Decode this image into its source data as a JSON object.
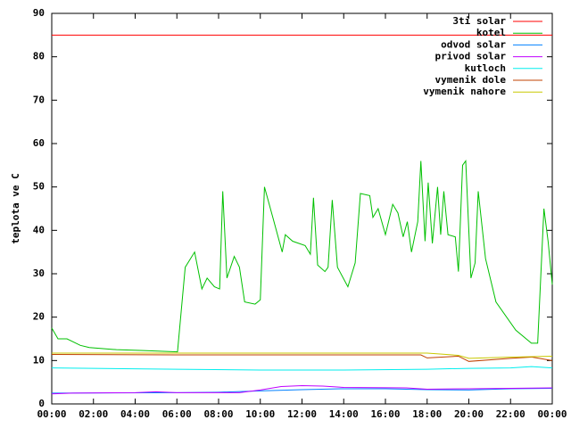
{
  "chart_data": {
    "type": "line",
    "y_label": "teplota ve C",
    "xlim": [
      0,
      24
    ],
    "xticks": [
      {
        "value": 0,
        "label": "00:00"
      },
      {
        "value": 2,
        "label": "02:00"
      },
      {
        "value": 4,
        "label": "04:00"
      },
      {
        "value": 6,
        "label": "06:00"
      },
      {
        "value": 8,
        "label": "08:00"
      },
      {
        "value": 10,
        "label": "10:00"
      },
      {
        "value": 12,
        "label": "12:00"
      },
      {
        "value": 14,
        "label": "14:00"
      },
      {
        "value": 16,
        "label": "16:00"
      },
      {
        "value": 18,
        "label": "18:00"
      },
      {
        "value": 20,
        "label": "20:00"
      },
      {
        "value": 22,
        "label": "22:00"
      },
      {
        "value": 24,
        "label": "00:00"
      }
    ],
    "ylim": [
      0,
      90
    ],
    "yticks": [
      0,
      10,
      20,
      30,
      40,
      50,
      60,
      70,
      80,
      90
    ],
    "legend": "top-right",
    "series": [
      {
        "name": "3ti solar",
        "color": "#ff0000",
        "x": [
          0,
          24
        ],
        "values": [
          85,
          85
        ]
      },
      {
        "name": "kotel",
        "color": "#00c000",
        "x": [
          0,
          0.3,
          0.73,
          1.37,
          1.8,
          3.1,
          4.4,
          6.03,
          6.4,
          6.85,
          7.2,
          7.45,
          7.8,
          8.05,
          8.2,
          8.4,
          8.75,
          9.0,
          9.25,
          9.75,
          10.0,
          10.2,
          10.6,
          11.05,
          11.2,
          11.55,
          12.15,
          12.4,
          12.55,
          12.75,
          13.1,
          13.25,
          13.45,
          13.7,
          14.2,
          14.55,
          14.8,
          15.25,
          15.4,
          15.65,
          16.0,
          16.35,
          16.6,
          16.85,
          17.05,
          17.25,
          17.55,
          17.7,
          17.9,
          18.05,
          18.25,
          18.5,
          18.65,
          18.8,
          19.0,
          19.35,
          19.5,
          19.7,
          19.85,
          20.1,
          20.3,
          20.45,
          20.8,
          21.3,
          22.25,
          23.0,
          23.3,
          23.6,
          23.8,
          24.0
        ],
        "values": [
          17.5,
          15,
          15,
          13.5,
          13,
          12.5,
          12.3,
          12,
          31.5,
          35,
          26.5,
          29,
          27,
          26.5,
          49,
          29,
          34,
          31.5,
          23.5,
          23,
          24,
          50,
          43,
          35,
          39,
          37.5,
          36.5,
          34.5,
          47.5,
          32,
          30.5,
          31.5,
          47,
          31.5,
          27,
          32.5,
          48.5,
          48,
          43,
          45,
          39,
          46,
          44,
          38.5,
          42,
          35,
          42,
          56,
          37.5,
          51,
          37,
          50,
          39,
          49,
          39,
          38.5,
          30.5,
          55,
          56,
          29,
          32.5,
          49,
          33.5,
          23.5,
          17,
          14,
          14,
          45,
          37.5,
          27.5
        ]
      },
      {
        "name": "odvod solar",
        "color": "#0080ff",
        "x": [
          0,
          6,
          8,
          10,
          12,
          14,
          16,
          18,
          20,
          22,
          24
        ],
        "values": [
          2.5,
          2.6,
          2.7,
          3,
          3.3,
          3.5,
          3.5,
          3.3,
          3.2,
          3.5,
          3.6
        ]
      },
      {
        "name": "privod solar",
        "color": "#c000ff",
        "x": [
          0,
          1,
          4,
          5,
          6,
          9,
          10,
          11,
          12,
          13,
          14,
          17,
          18,
          20,
          22,
          24
        ],
        "values": [
          2.3,
          2.5,
          2.6,
          2.8,
          2.6,
          2.6,
          3.2,
          4,
          4.2,
          4.1,
          3.8,
          3.7,
          3.4,
          3.5,
          3.6,
          3.7
        ]
      },
      {
        "name": "kutloch",
        "color": "#00eeee",
        "x": [
          0,
          6,
          10,
          14,
          18,
          20,
          22,
          23,
          24
        ],
        "values": [
          8.3,
          8,
          7.8,
          7.8,
          8,
          8.2,
          8.3,
          8.6,
          8.3
        ]
      },
      {
        "name": "vymenik dole",
        "color": "#c04000",
        "x": [
          0,
          6,
          17.7,
          18,
          19.5,
          20,
          22,
          23,
          24
        ],
        "values": [
          11.4,
          11.3,
          11.3,
          10.6,
          11,
          9.8,
          10.5,
          10.8,
          10
        ]
      },
      {
        "name": "vymenik nahore",
        "color": "#c8c800",
        "x": [
          0,
          18,
          19.5,
          20,
          22,
          24
        ],
        "values": [
          11.7,
          11.7,
          11.2,
          10.5,
          10.8,
          11
        ]
      }
    ]
  }
}
